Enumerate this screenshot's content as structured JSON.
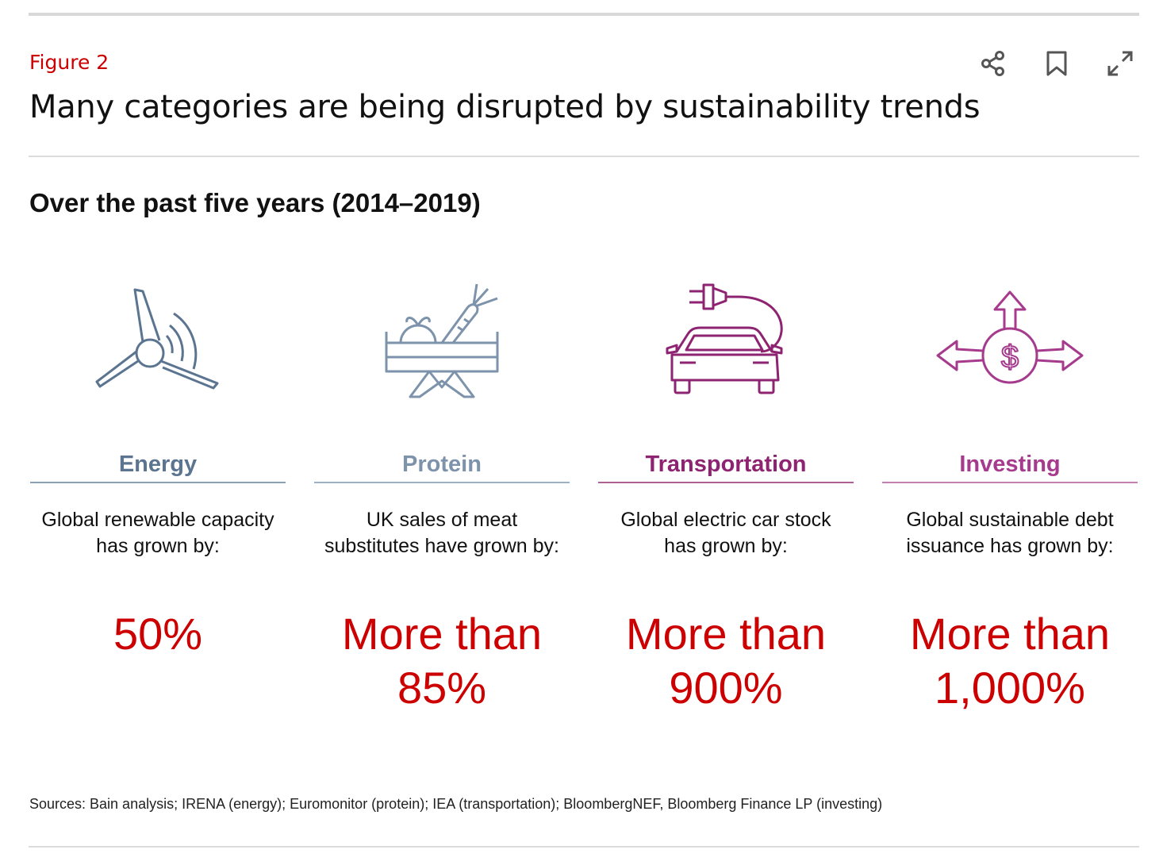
{
  "figure": {
    "label": "Figure 2",
    "title": "Many categories are being disrupted by sustainability trends",
    "subtitle": "Over the past five years (2014–2019)"
  },
  "actions": [
    {
      "icon": "share-icon"
    },
    {
      "icon": "bookmark-icon"
    },
    {
      "icon": "expand-icon"
    }
  ],
  "colors": {
    "accent_red": "#cc0000",
    "energy": "#5b7490",
    "protein": "#7d93ab",
    "transportation": "#8e2371",
    "investing": "#a63a8d"
  },
  "categories": [
    {
      "name": "Energy",
      "icon": "wind-turbine-icon",
      "description_line1": "Global renewable capacity",
      "description_line2": "has grown by:",
      "value_line1": "50%",
      "value_line2": ""
    },
    {
      "name": "Protein",
      "icon": "vegetable-crate-icon",
      "description_line1": "UK sales of meat",
      "description_line2": "substitutes have grown by:",
      "value_line1": "More than",
      "value_line2": "85%"
    },
    {
      "name": "Transportation",
      "icon": "electric-car-icon",
      "description_line1": "Global electric car stock",
      "description_line2": "has grown by:",
      "value_line1": "More than",
      "value_line2": "900%"
    },
    {
      "name": "Investing",
      "icon": "dollar-arrows-icon",
      "description_line1": "Global sustainable debt",
      "description_line2": "issuance has grown by:",
      "value_line1": "More than",
      "value_line2": "1,000%"
    }
  ],
  "sources": "Sources: Bain analysis; IRENA (energy); Euromonitor (protein); IEA (transportation); BloombergNEF, Bloomberg Finance LP (investing)"
}
